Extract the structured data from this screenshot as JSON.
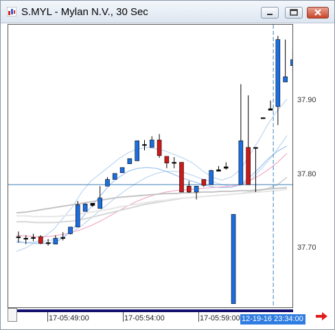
{
  "window": {
    "title": "S.MYL - Mylan N.V., 30 Sec",
    "buttons": [
      "minimize",
      "maximize",
      "close"
    ]
  },
  "chart_data": {
    "type": "candlestick",
    "symbol": "S.MYL",
    "interval": "30 Sec",
    "y_tick_labels": [
      "37.90",
      "37.80",
      "37.70"
    ],
    "x_tick_labels": [
      "17-05:49:00",
      "17-05:54:00",
      "17-05:59:00"
    ],
    "cursor_time_label": "12-19-16 23:34:00",
    "horizontal_line_price": 37.79,
    "ylim": [
      37.625,
      38.005
    ],
    "candles": [
      {
        "o": 37.72,
        "h": 37.727,
        "l": 37.712,
        "c": 37.72,
        "dir": "flat"
      },
      {
        "o": 37.718,
        "h": 37.722,
        "l": 37.71,
        "c": 37.718,
        "dir": "flat"
      },
      {
        "o": 37.719,
        "h": 37.724,
        "l": 37.714,
        "c": 37.719,
        "dir": "flat"
      },
      {
        "o": 37.72,
        "h": 37.722,
        "l": 37.71,
        "c": 37.711,
        "dir": "down"
      },
      {
        "o": 37.712,
        "h": 37.717,
        "l": 37.708,
        "c": 37.712,
        "dir": "flat"
      },
      {
        "o": 37.71,
        "h": 37.722,
        "l": 37.71,
        "c": 37.718,
        "dir": "up"
      },
      {
        "o": 37.719,
        "h": 37.726,
        "l": 37.715,
        "c": 37.719,
        "dir": "flat"
      },
      {
        "o": 37.724,
        "h": 37.733,
        "l": 37.723,
        "c": 37.733,
        "dir": "up"
      },
      {
        "o": 37.733,
        "h": 37.768,
        "l": 37.733,
        "c": 37.763,
        "dir": "up"
      },
      {
        "o": 37.754,
        "h": 37.765,
        "l": 37.754,
        "c": 37.764,
        "dir": "up"
      },
      {
        "o": 37.765,
        "h": 37.765,
        "l": 37.76,
        "c": 37.762,
        "dir": "flat"
      },
      {
        "o": 37.758,
        "h": 37.788,
        "l": 37.758,
        "c": 37.772,
        "dir": "up"
      },
      {
        "o": 37.788,
        "h": 37.8,
        "l": 37.788,
        "c": 37.797,
        "dir": "up"
      },
      {
        "o": 37.797,
        "h": 37.805,
        "l": 37.797,
        "c": 37.805,
        "dir": "up"
      },
      {
        "o": 37.806,
        "h": 37.813,
        "l": 37.806,
        "c": 37.813,
        "dir": "up"
      },
      {
        "o": 37.818,
        "h": 37.825,
        "l": 37.818,
        "c": 37.825,
        "dir": "up"
      },
      {
        "o": 37.822,
        "h": 37.849,
        "l": 37.822,
        "c": 37.849,
        "dir": "up"
      },
      {
        "o": 37.844,
        "h": 37.85,
        "l": 37.836,
        "c": 37.844,
        "dir": "flat"
      },
      {
        "o": 37.84,
        "h": 37.855,
        "l": 37.84,
        "c": 37.85,
        "dir": "up"
      },
      {
        "o": 37.85,
        "h": 37.858,
        "l": 37.826,
        "c": 37.829,
        "dir": "down"
      },
      {
        "o": 37.828,
        "h": 37.828,
        "l": 37.812,
        "c": 37.819,
        "dir": "down"
      },
      {
        "o": 37.82,
        "h": 37.827,
        "l": 37.812,
        "c": 37.82,
        "dir": "flat"
      },
      {
        "o": 37.82,
        "h": 37.82,
        "l": 37.78,
        "c": 37.78,
        "dir": "down"
      },
      {
        "o": 37.788,
        "h": 37.795,
        "l": 37.779,
        "c": 37.78,
        "dir": "down"
      },
      {
        "o": 37.788,
        "h": 37.788,
        "l": 37.77,
        "c": 37.78,
        "dir": "up"
      },
      {
        "o": 37.797,
        "h": 37.797,
        "l": 37.787,
        "c": 37.789,
        "dir": "down"
      },
      {
        "o": 37.79,
        "h": 37.81,
        "l": 37.79,
        "c": 37.809,
        "dir": "up"
      },
      {
        "o": 37.808,
        "h": 37.815,
        "l": 37.808,
        "c": 37.81,
        "dir": "flat"
      },
      {
        "o": 37.812,
        "h": 37.82,
        "l": 37.81,
        "c": 37.814,
        "dir": "flat"
      },
      {
        "o": 37.75,
        "h": 37.75,
        "l": 37.63,
        "c": 37.63,
        "dir": "up"
      },
      {
        "o": 37.79,
        "h": 37.925,
        "l": 37.79,
        "c": 37.849,
        "dir": "up"
      },
      {
        "o": 37.84,
        "h": 37.91,
        "l": 37.79,
        "c": 37.79,
        "dir": "down"
      },
      {
        "o": 37.84,
        "h": 37.84,
        "l": 37.78,
        "c": 37.84,
        "dir": "flat"
      },
      {
        "o": 37.88,
        "h": 37.88,
        "l": 37.88,
        "c": 37.88,
        "dir": "flat"
      },
      {
        "o": 37.89,
        "h": 37.903,
        "l": 37.89,
        "c": 37.892,
        "dir": "flat"
      },
      {
        "o": 37.895,
        "h": 37.99,
        "l": 37.87,
        "c": 37.985,
        "dir": "up"
      },
      {
        "o": 37.928,
        "h": 37.985,
        "l": 37.928,
        "c": 37.935,
        "dir": "up"
      },
      {
        "o": 37.95,
        "h": 37.972,
        "l": 37.94,
        "c": 37.958,
        "dir": "up"
      }
    ],
    "overlays": [
      {
        "color": "#bcd6f2",
        "values": [
          37.7,
          37.705,
          37.712,
          37.72,
          37.73,
          37.745,
          37.76,
          37.78,
          37.795,
          37.805,
          37.815,
          37.825,
          37.833,
          37.838,
          37.84,
          37.838,
          37.835,
          37.83,
          37.825,
          37.818,
          37.808,
          37.8,
          37.796,
          37.8,
          37.81,
          37.83,
          37.85,
          37.872,
          37.89,
          37.905
        ]
      },
      {
        "color": "#bcd6f2",
        "values": [
          37.712,
          37.712,
          37.713,
          37.714,
          37.716,
          37.72,
          37.727,
          37.735,
          37.745,
          37.756,
          37.766,
          37.776,
          37.785,
          37.793,
          37.8,
          37.805,
          37.808,
          37.808,
          37.806,
          37.802,
          37.797,
          37.794,
          37.79,
          37.788,
          37.789,
          37.795,
          37.808,
          37.822,
          37.838,
          37.856
        ]
      },
      {
        "color": "#9dc3ee",
        "values": [
          37.714,
          37.712,
          37.711,
          37.711,
          37.712,
          37.718,
          37.73,
          37.745,
          37.76,
          37.775,
          37.79,
          37.8,
          37.808,
          37.812,
          37.813,
          37.812,
          37.808,
          37.803,
          37.798,
          37.794,
          37.79,
          37.787,
          37.786,
          37.786,
          37.79,
          37.8,
          37.812,
          37.825,
          37.835,
          37.842
        ]
      },
      {
        "color": "#f0aac4",
        "values": [
          37.722,
          37.721,
          37.72,
          37.72,
          37.721,
          37.723,
          37.726,
          37.73,
          37.735,
          37.741,
          37.748,
          37.755,
          37.762,
          37.768,
          37.773,
          37.777,
          37.78,
          37.782,
          37.783,
          37.784,
          37.785,
          37.786,
          37.787,
          37.788,
          37.79,
          37.795,
          37.802,
          37.81,
          37.82,
          37.832
        ]
      },
      {
        "color": "#d6d6d6",
        "values": [
          37.74,
          37.74,
          37.739,
          37.739,
          37.739,
          37.74,
          37.741,
          37.743,
          37.746,
          37.749,
          37.752,
          37.755,
          37.758,
          37.761,
          37.764,
          37.766,
          37.768,
          37.77,
          37.772,
          37.773,
          37.774,
          37.775,
          37.776,
          37.777,
          37.778,
          37.78,
          37.782,
          37.785,
          37.79,
          37.8
        ]
      },
      {
        "color": "#e6e6e6",
        "values": [
          37.748,
          37.748,
          37.747,
          37.747,
          37.747,
          37.748,
          37.749,
          37.751,
          37.753,
          37.755,
          37.757,
          37.76,
          37.762,
          37.764,
          37.766,
          37.768,
          37.769,
          37.771,
          37.772,
          37.773,
          37.774,
          37.775,
          37.776,
          37.777,
          37.778,
          37.779,
          37.78,
          37.781,
          37.782,
          37.784
        ]
      },
      {
        "color": "#c4c4c4",
        "values": [
          37.752,
          37.753,
          37.755,
          37.757,
          37.759,
          37.761,
          37.763,
          37.765,
          37.767,
          37.769,
          37.771,
          37.773,
          37.774,
          37.775,
          37.776,
          37.777,
          37.778,
          37.778,
          37.779,
          37.779,
          37.78,
          37.78,
          37.781,
          37.781,
          37.782,
          37.782,
          37.783,
          37.784,
          37.785,
          37.786
        ]
      }
    ]
  }
}
